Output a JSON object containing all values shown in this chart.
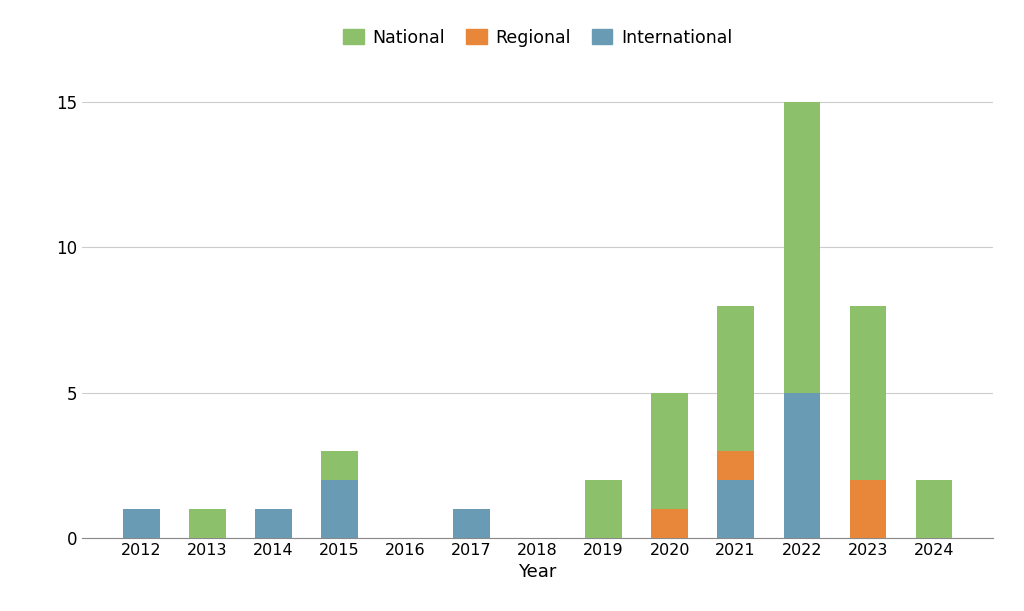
{
  "years": [
    2012,
    2013,
    2014,
    2015,
    2016,
    2017,
    2018,
    2019,
    2020,
    2021,
    2022,
    2023,
    2024
  ],
  "national": [
    0,
    1,
    0,
    1,
    0,
    0,
    0,
    2,
    4,
    5,
    10,
    6,
    2
  ],
  "regional": [
    0,
    0,
    0,
    0,
    0,
    0,
    0,
    0,
    1,
    1,
    0,
    2,
    0
  ],
  "international": [
    1,
    0,
    1,
    2,
    0,
    1,
    0,
    0,
    0,
    2,
    5,
    0,
    0
  ],
  "national_color": "#8DC06A",
  "regional_color": "#E8873A",
  "international_color": "#6A9BB5",
  "background_color": "#FFFFFF",
  "grid_color": "#CCCCCC",
  "xlabel_label": "Year",
  "yticks": [
    0,
    5,
    10,
    15
  ],
  "ylim": [
    0,
    16
  ],
  "bar_width": 0.55
}
